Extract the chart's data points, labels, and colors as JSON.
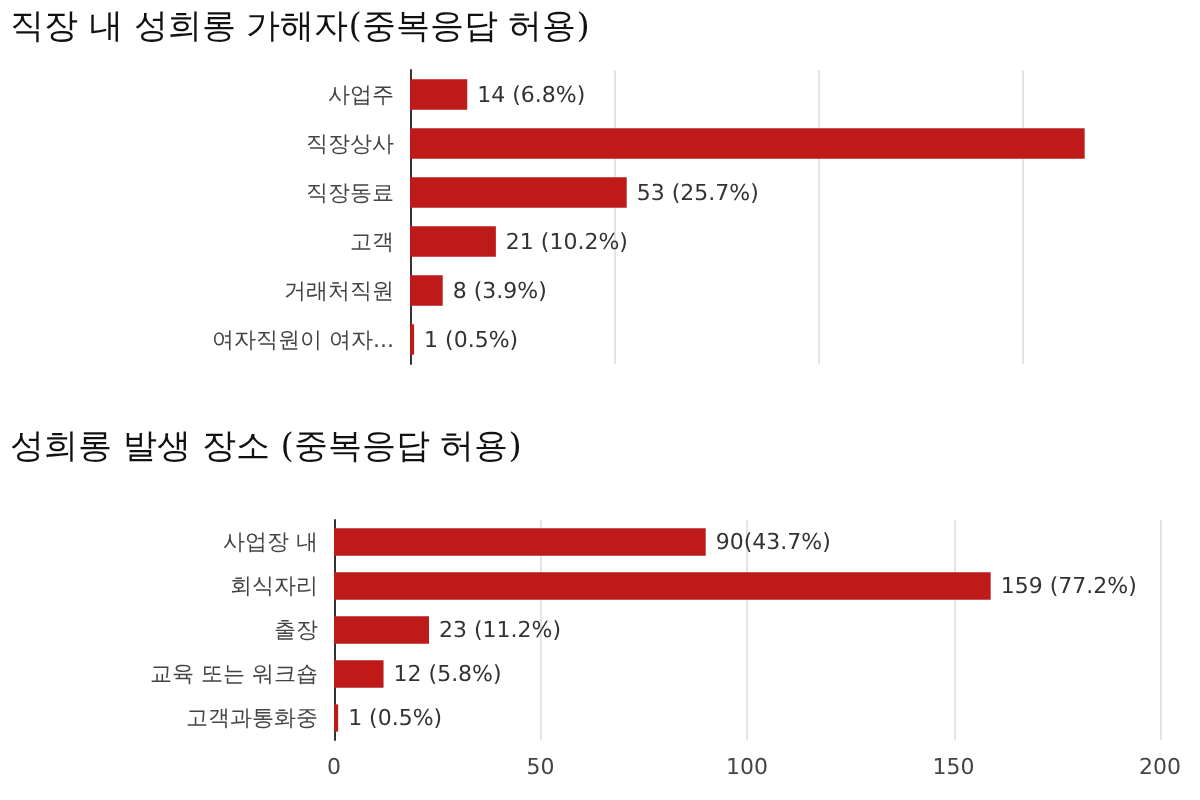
{
  "chart_data": [
    {
      "type": "bar",
      "orientation": "horizontal",
      "title": "직장 내 성희롱 가해자(중복응답 허용)",
      "categories": [
        "사업주",
        "직장상사",
        "직장동료",
        "고객",
        "거래처직원",
        "여자직원이 여자..."
      ],
      "values": [
        14,
        165,
        53,
        21,
        8,
        1
      ],
      "color": "#be1a1a",
      "value_labels": [
        "14 (6.8%)",
        null,
        "53 (25.7%)",
        "21 (10.2%)",
        "8 (3.9%)",
        "1 (0.5%)"
      ],
      "xticks": [
        {
          "value": 0,
          "label": null
        },
        {
          "value": 50,
          "label": null
        },
        {
          "value": 100,
          "label": null
        },
        {
          "value": 150,
          "label": null
        }
      ],
      "tick_labels": "y",
      "grid": "x"
    },
    {
      "type": "bar",
      "orientation": "horizontal",
      "title": "성희롱 발생 장소 (중복응답 허용)",
      "categories": [
        "사업장 내",
        "회식자리",
        "출장",
        "교육 또는 워크숍",
        "고객과통화중"
      ],
      "values": [
        90,
        159,
        23,
        12,
        1
      ],
      "color": "#be1a1a",
      "value_labels": [
        "90(43.7%)",
        "159 (77.2%)",
        "23 (11.2%)",
        "12 (5.8%)",
        "1 (0.5%)"
      ],
      "xlim": [
        0,
        200
      ],
      "xticks": [
        0,
        50,
        100,
        150,
        200
      ],
      "grid": "x"
    }
  ]
}
